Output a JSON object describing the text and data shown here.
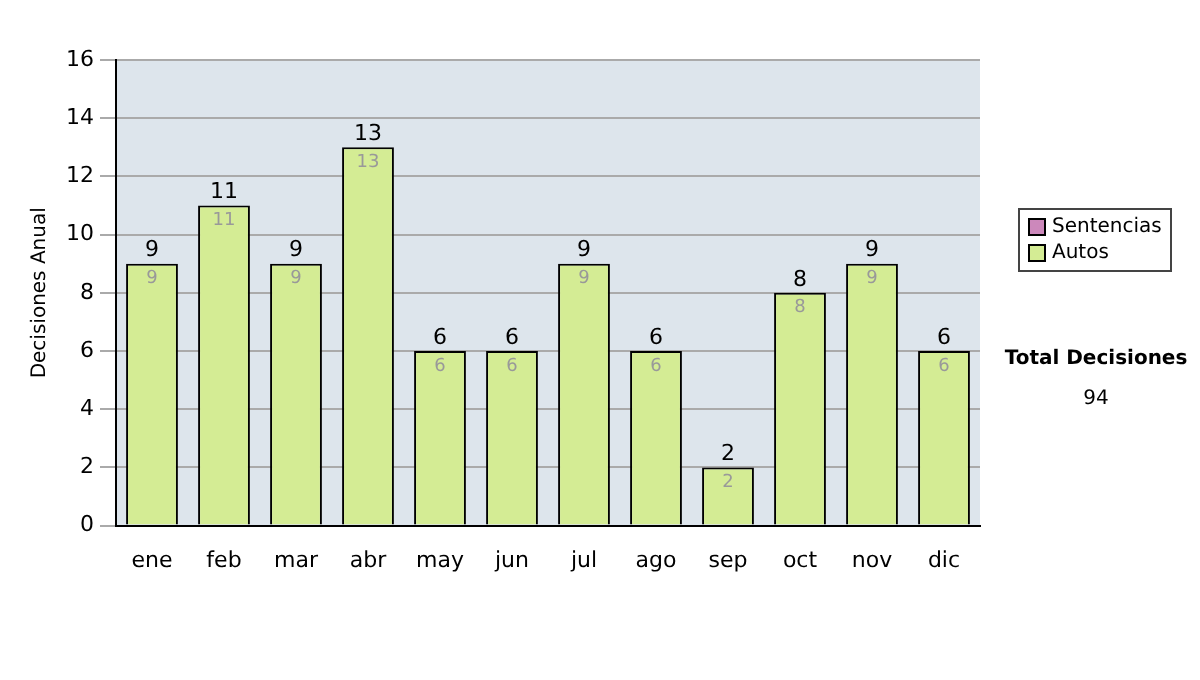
{
  "chart_data": {
    "type": "bar",
    "ylabel": "Decisiones Anual",
    "categories": [
      "ene",
      "feb",
      "mar",
      "abr",
      "may",
      "jun",
      "jul",
      "ago",
      "sep",
      "oct",
      "nov",
      "dic"
    ],
    "stacked": true,
    "series": [
      {
        "name": "Sentencias",
        "color": "#cc88bb",
        "values": [
          0,
          0,
          0,
          0,
          0,
          0,
          0,
          0,
          0,
          0,
          0,
          0
        ]
      },
      {
        "name": "Autos",
        "color": "#d4ec94",
        "values": [
          9,
          11,
          9,
          13,
          6,
          6,
          9,
          6,
          2,
          8,
          9,
          6
        ],
        "value_labels": [
          "9",
          "11",
          "9",
          "13",
          "6",
          "6",
          "9",
          "6",
          "2",
          "8",
          "9",
          "6"
        ]
      }
    ],
    "totals": [
      "9",
      "11",
      "9",
      "13",
      "6",
      "6",
      "9",
      "6",
      "2",
      "8",
      "9",
      "6"
    ],
    "ylim": [
      0,
      16
    ],
    "yticks": [
      0,
      2,
      4,
      6,
      8,
      10,
      12,
      14,
      16
    ],
    "grid": "y",
    "legend": "right",
    "annotations": [
      "Total Decisiones",
      "94"
    ]
  }
}
